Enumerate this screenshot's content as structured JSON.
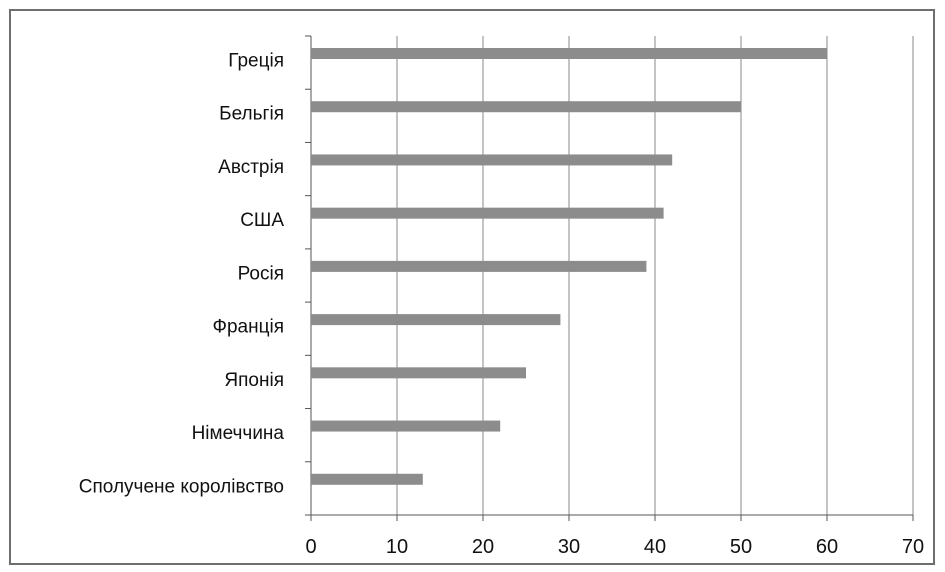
{
  "chart_data": {
    "type": "bar",
    "orientation": "horizontal",
    "title": "",
    "xlabel": "",
    "ylabel": "",
    "categories": [
      "Греція",
      "Бельгія",
      "Австрія",
      "США",
      "Росія",
      "Франція",
      "Японія",
      "Німеччина",
      "Сполучене королівство"
    ],
    "values": [
      60,
      50,
      42,
      41,
      39,
      29,
      25,
      22,
      13
    ],
    "xlim": [
      0,
      70
    ],
    "xticks": [
      "0",
      "10",
      "20",
      "30",
      "40",
      "50",
      "60",
      "70"
    ],
    "grid": "vertical",
    "legend": "none",
    "colors": {
      "bar": "#8c8c8c",
      "grid": "#8a8a8a",
      "axis": "#555555",
      "text": "#111111",
      "frame": "#6e6e6e"
    }
  }
}
